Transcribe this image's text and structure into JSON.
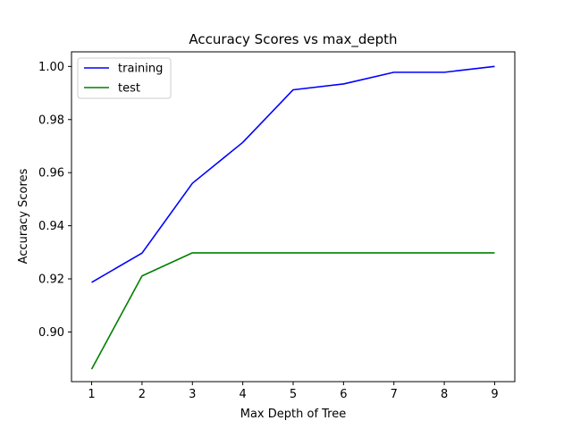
{
  "chart_data": {
    "type": "line",
    "title": "Accuracy Scores vs max_depth",
    "xlabel": "Max Depth of Tree",
    "ylabel": "Accuracy Scores",
    "x": [
      1,
      2,
      3,
      4,
      5,
      6,
      7,
      8,
      9
    ],
    "xticks": [
      "1",
      "2",
      "3",
      "4",
      "5",
      "6",
      "7",
      "8",
      "9"
    ],
    "xlim": [
      0.6,
      9.4
    ],
    "yticks": [
      "0.90",
      "0.92",
      "0.94",
      "0.96",
      "0.98",
      "1.00"
    ],
    "ylim": [
      0.8813,
      1.0055
    ],
    "grid": false,
    "legend_position": "top-left",
    "series": [
      {
        "name": "training",
        "color": "#0000ff",
        "values": [
          0.9187,
          0.9297,
          0.956,
          0.9714,
          0.9912,
          0.9934,
          0.9978,
          0.9978,
          1.0
        ]
      },
      {
        "name": "test",
        "color": "#008000",
        "values": [
          0.886,
          0.9211,
          0.9298,
          0.9298,
          0.9298,
          0.9298,
          0.9298,
          0.9298,
          0.9298
        ]
      }
    ]
  }
}
